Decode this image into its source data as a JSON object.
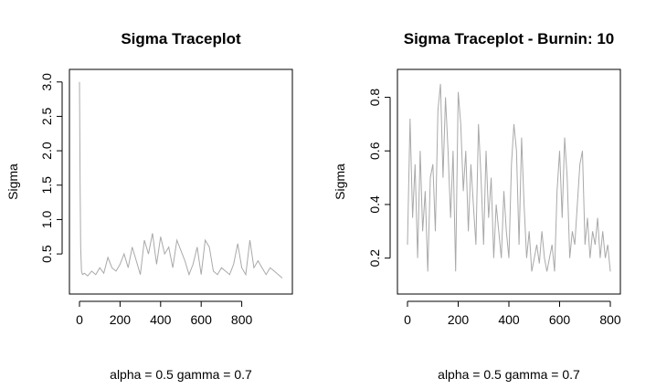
{
  "chart_data": [
    {
      "type": "line",
      "title": "Sigma Traceplot",
      "xlabel": "",
      "ylabel": "Sigma",
      "note": "alpha = 0.5    gamma = 0.7",
      "xlim": [
        0,
        1000
      ],
      "ylim": [
        0.05,
        3.05
      ],
      "xticks": [
        0,
        200,
        400,
        600,
        800
      ],
      "yticks": [
        0.5,
        1.0,
        1.5,
        2.0,
        2.5,
        3.0
      ],
      "ytick_labels": [
        "0.5",
        "1.0",
        "1.5",
        "2.0",
        "2.5",
        "3.0"
      ],
      "line_color": "#A9A9A9",
      "series": [
        {
          "x": [
            0,
            3,
            6,
            10,
            15,
            25,
            40,
            60,
            80,
            100,
            120,
            140,
            160,
            180,
            200,
            220,
            240,
            260,
            280,
            300,
            320,
            340,
            360,
            380,
            400,
            420,
            440,
            460,
            480,
            500,
            520,
            540,
            560,
            580,
            600,
            620,
            640,
            660,
            680,
            700,
            720,
            740,
            760,
            780,
            800,
            820,
            840,
            860,
            880,
            900,
            920,
            940,
            960,
            980,
            1000
          ],
          "y": [
            3.0,
            1.5,
            0.6,
            0.25,
            0.2,
            0.22,
            0.18,
            0.25,
            0.2,
            0.3,
            0.22,
            0.45,
            0.3,
            0.25,
            0.35,
            0.5,
            0.3,
            0.6,
            0.4,
            0.2,
            0.7,
            0.5,
            0.8,
            0.35,
            0.75,
            0.5,
            0.6,
            0.3,
            0.7,
            0.55,
            0.4,
            0.2,
            0.35,
            0.6,
            0.2,
            0.7,
            0.6,
            0.25,
            0.2,
            0.3,
            0.25,
            0.2,
            0.35,
            0.65,
            0.3,
            0.2,
            0.7,
            0.3,
            0.4,
            0.3,
            0.2,
            0.3,
            0.25,
            0.2,
            0.15
          ]
        }
      ]
    },
    {
      "type": "line",
      "title": "Sigma Traceplot - Burnin: 10",
      "xlabel": "",
      "ylabel": "Sigma",
      "note": "alpha = 0.5   gamma = 0.7",
      "xlim": [
        0,
        800
      ],
      "ylim": [
        0.1,
        0.87
      ],
      "xticks": [
        0,
        200,
        400,
        600,
        800
      ],
      "yticks": [
        0.2,
        0.4,
        0.6,
        0.8
      ],
      "ytick_labels": [
        "0.2",
        "0.4",
        "0.6",
        "0.8"
      ],
      "line_color": "#A9A9A9",
      "series": [
        {
          "x": [
            0,
            10,
            20,
            30,
            40,
            50,
            60,
            70,
            80,
            90,
            100,
            110,
            120,
            130,
            140,
            150,
            160,
            170,
            180,
            190,
            200,
            210,
            220,
            230,
            240,
            250,
            260,
            270,
            280,
            290,
            300,
            310,
            320,
            330,
            340,
            350,
            360,
            370,
            380,
            390,
            400,
            410,
            420,
            430,
            440,
            450,
            460,
            470,
            480,
            490,
            500,
            510,
            520,
            530,
            540,
            550,
            560,
            570,
            580,
            590,
            600,
            610,
            620,
            630,
            640,
            650,
            660,
            670,
            680,
            690,
            700,
            710,
            720,
            730,
            740,
            750,
            760,
            770,
            780,
            790,
            800
          ],
          "y": [
            0.25,
            0.72,
            0.35,
            0.55,
            0.2,
            0.6,
            0.3,
            0.45,
            0.15,
            0.5,
            0.55,
            0.3,
            0.75,
            0.85,
            0.5,
            0.8,
            0.6,
            0.35,
            0.6,
            0.15,
            0.82,
            0.7,
            0.45,
            0.6,
            0.3,
            0.55,
            0.4,
            0.25,
            0.7,
            0.5,
            0.25,
            0.6,
            0.35,
            0.5,
            0.2,
            0.4,
            0.3,
            0.2,
            0.45,
            0.3,
            0.2,
            0.55,
            0.7,
            0.6,
            0.25,
            0.65,
            0.4,
            0.2,
            0.3,
            0.15,
            0.2,
            0.25,
            0.18,
            0.3,
            0.2,
            0.15,
            0.2,
            0.25,
            0.15,
            0.45,
            0.6,
            0.35,
            0.65,
            0.5,
            0.2,
            0.3,
            0.25,
            0.4,
            0.55,
            0.6,
            0.25,
            0.35,
            0.2,
            0.3,
            0.25,
            0.35,
            0.2,
            0.3,
            0.2,
            0.25,
            0.15
          ]
        }
      ]
    }
  ]
}
